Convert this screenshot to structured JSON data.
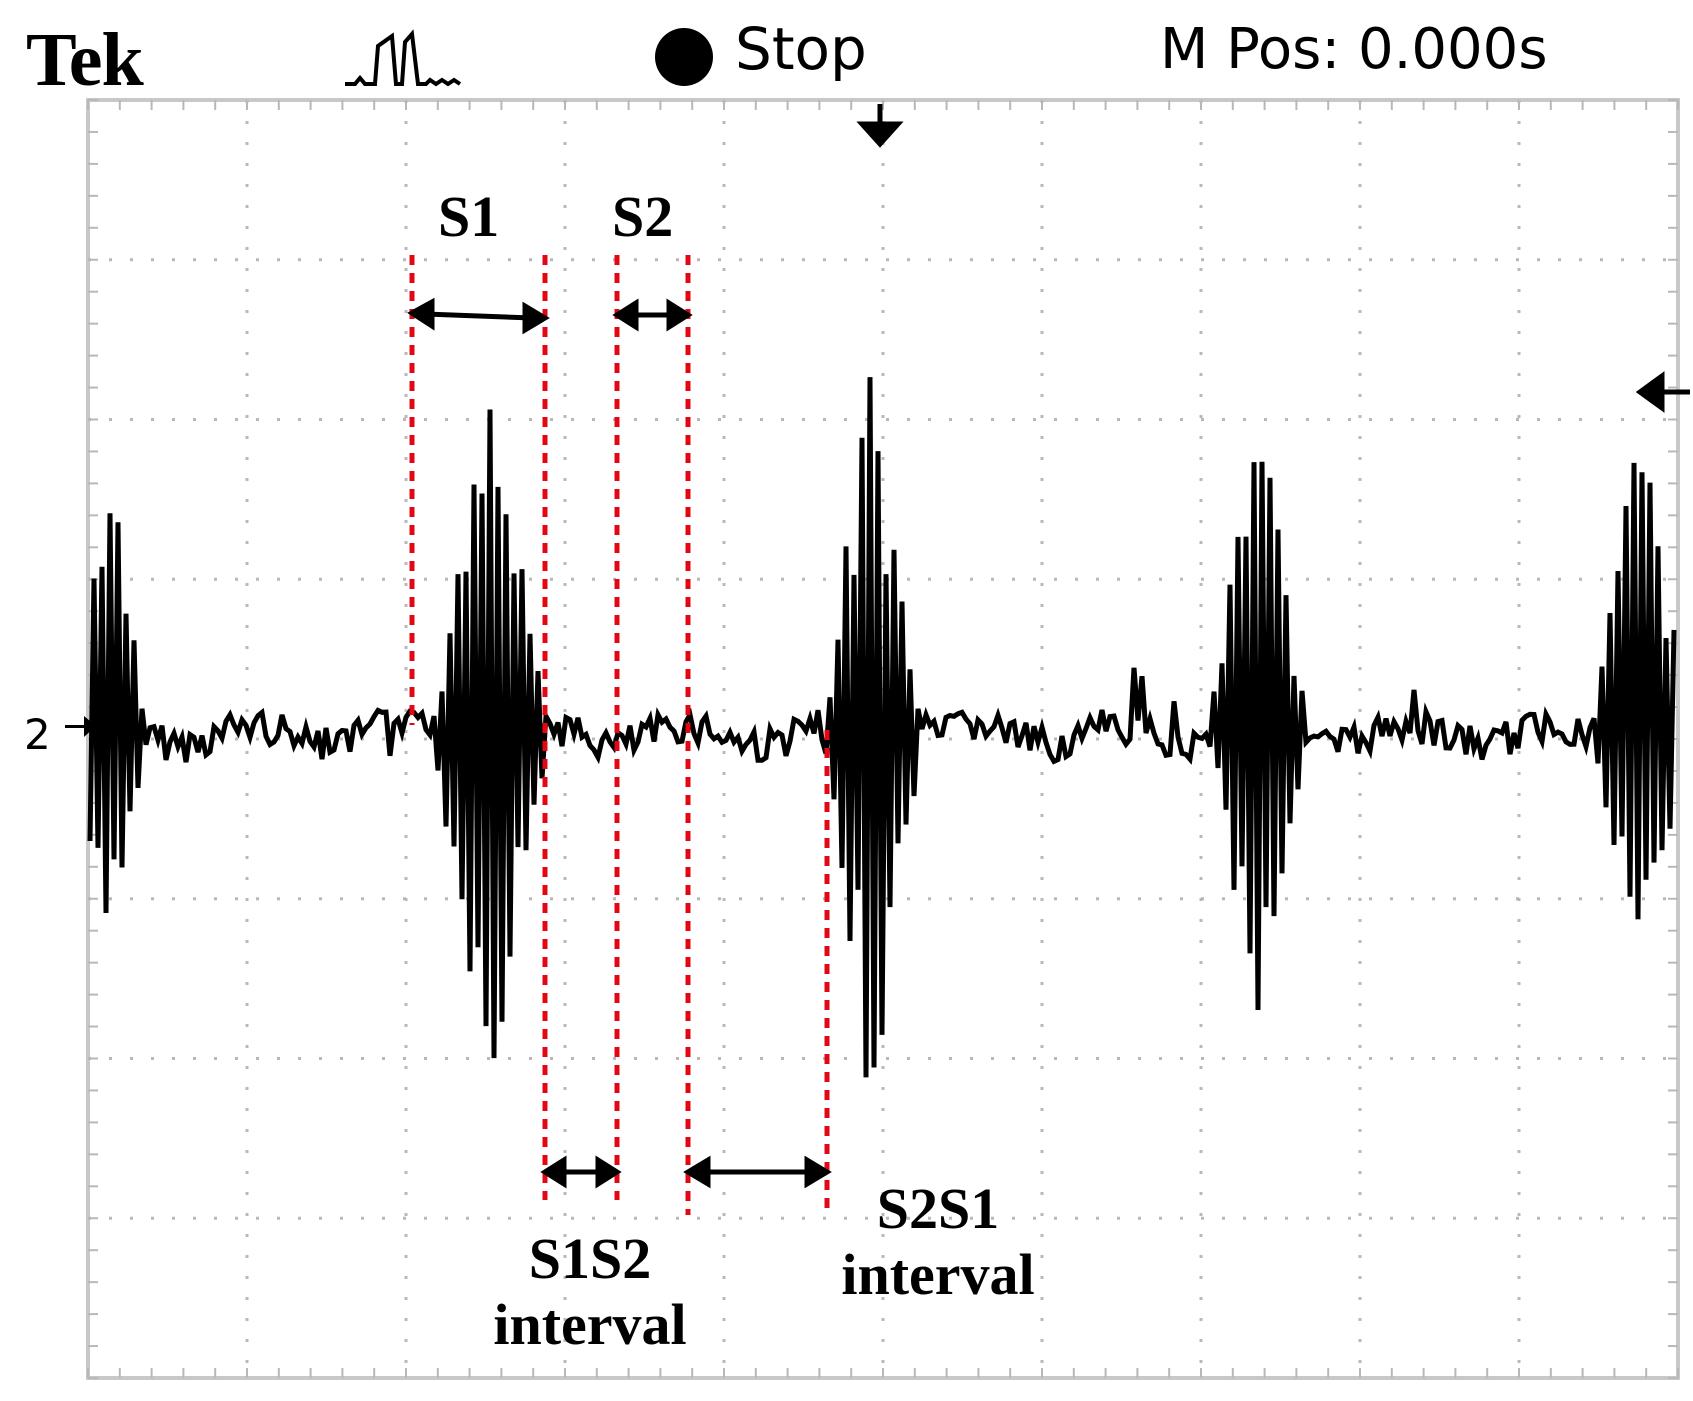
{
  "header": {
    "brand": "Tek",
    "trigger_icon": "trigger-pulse-icon",
    "status_icon": "stop-dot-icon",
    "status_label": "Stop",
    "m_pos": "M Pos: 0.000s"
  },
  "channel": {
    "label": "2",
    "marker_icon": "channel-ground-marker-icon"
  },
  "markers": {
    "trigger_position_icon": "down-arrow-icon",
    "trigger_level_icon": "left-arrow-icon"
  },
  "annotations": {
    "s1": "S1",
    "s2": "S2",
    "s1s2_line1": "S1S2",
    "s1s2_line2": "interval",
    "s2s1_line1": "S2S1",
    "s2s1_line2": "interval"
  },
  "colors": {
    "trace": "#000000",
    "annotation_lines": "#e30613",
    "grid": "#b8b8b8",
    "frame": "#c8c8c8",
    "background": "#ffffff"
  },
  "display": {
    "grid": true,
    "divisions_x": 10,
    "divisions_y": 8
  }
}
